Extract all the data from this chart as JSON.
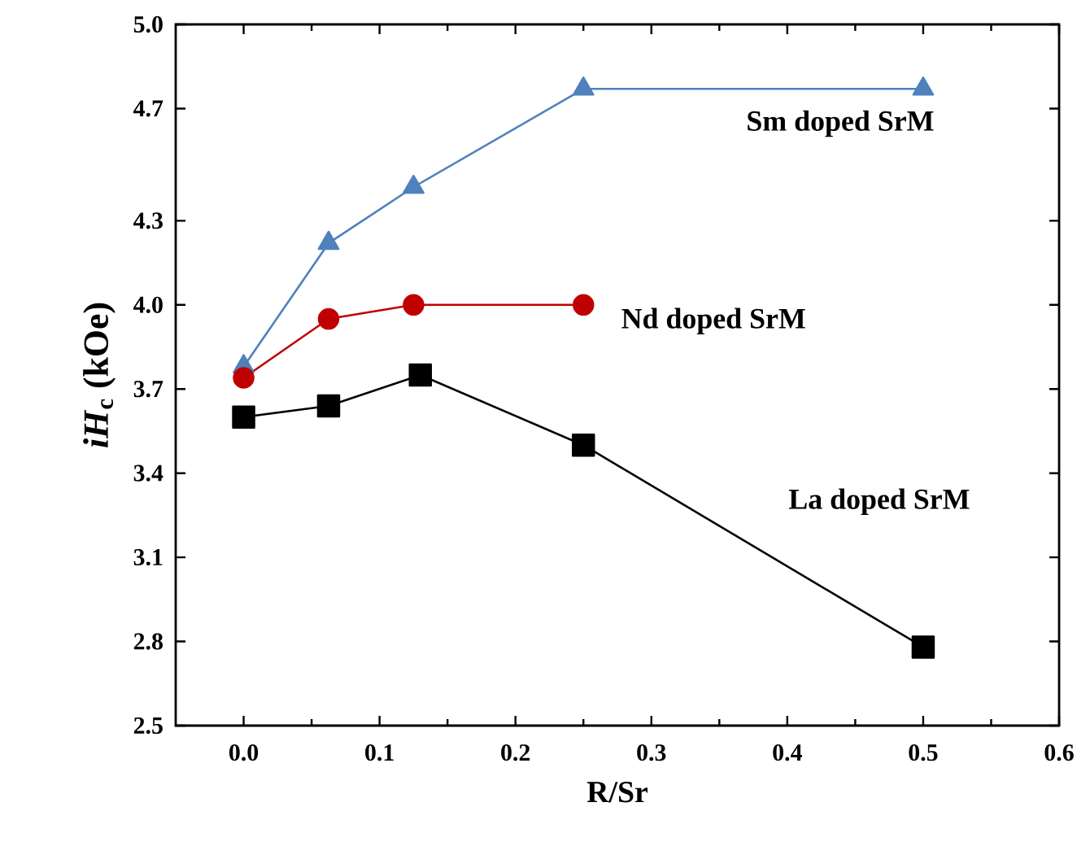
{
  "chart_data": {
    "type": "line",
    "xlabel": "R/Sr",
    "ylabel": "*iH*$_{c}$ (kOe)",
    "xlim": [
      -0.05,
      0.6
    ],
    "xticks": [
      {
        "value": 0,
        "label": "0.0"
      },
      0.1,
      0.2,
      0.3,
      0.4,
      0.5,
      0.6
    ],
    "ylim": [
      2.5,
      5.0
    ],
    "yticks": [
      2.5,
      2.8,
      3.1,
      3.4,
      3.7,
      {
        "value": 4.0,
        "label": "4.0"
      },
      4.3,
      4.7,
      {
        "value": 5.0,
        "label": "5.0"
      }
    ],
    "grid": false,
    "legend": false,
    "line_style": "solid",
    "series": [
      {
        "name": "Sm doped SrM",
        "color": "#4f81bd",
        "marker": "triangle",
        "x": [
          0,
          0.0625,
          0.125,
          0.25,
          0.5
        ],
        "values": [
          3.78,
          4.22,
          4.42,
          4.77,
          4.77
        ]
      },
      {
        "name": "Nd doped SrM",
        "color": "#c00000",
        "marker": "circle",
        "x": [
          0,
          0.0625,
          0.125,
          0.25
        ],
        "values": [
          3.74,
          3.95,
          4.0,
          4.0
        ]
      },
      {
        "name": "La doped SrM",
        "color": "#000000",
        "marker": "square",
        "x": [
          0,
          0.0625,
          0.13,
          0.25,
          0.5
        ],
        "values": [
          3.6,
          3.64,
          3.75,
          3.5,
          2.78
        ]
      }
    ]
  }
}
